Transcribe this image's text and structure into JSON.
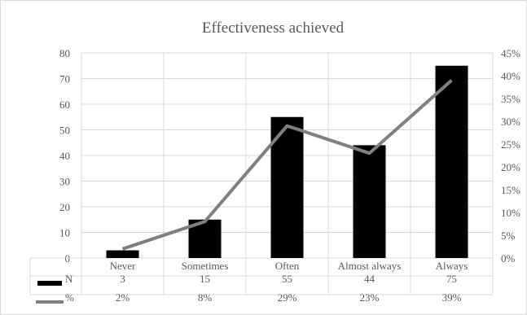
{
  "chart_data": {
    "type": "bar",
    "title": "Effectiveness achieved",
    "categories": [
      "Never",
      "Sometimes",
      "Often",
      "Almost always",
      "Always"
    ],
    "series": [
      {
        "name": "N",
        "type": "bar",
        "axis": "left",
        "values": [
          3,
          15,
          55,
          44,
          75
        ],
        "color": "#000000"
      },
      {
        "name": "%",
        "type": "line",
        "axis": "right",
        "values": [
          0.02,
          0.08,
          0.29,
          0.23,
          0.39
        ],
        "color": "#808080"
      }
    ],
    "table": {
      "rows": [
        {
          "label": "N",
          "cells": [
            "3",
            "15",
            "55",
            "44",
            "75"
          ]
        },
        {
          "label": "%",
          "cells": [
            "2%",
            "8%",
            "29%",
            "23%",
            "39%"
          ]
        }
      ]
    },
    "y_left": {
      "ylim": [
        0,
        80
      ],
      "ticks": [
        "0",
        "10",
        "20",
        "30",
        "40",
        "50",
        "60",
        "70",
        "80"
      ]
    },
    "y_right": {
      "ylim": [
        0,
        0.45
      ],
      "ticks": [
        "0%",
        "5%",
        "10%",
        "15%",
        "20%",
        "25%",
        "30%",
        "35%",
        "40%",
        "45%"
      ]
    },
    "grid": true,
    "legend": "data-table"
  }
}
